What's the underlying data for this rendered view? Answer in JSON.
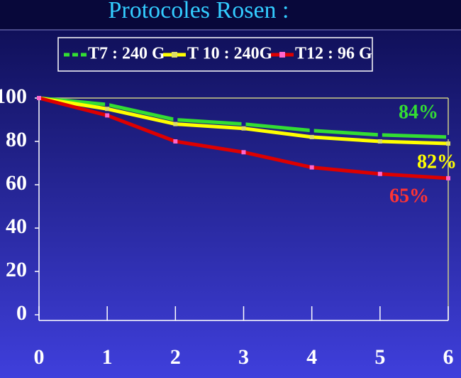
{
  "chart_data": {
    "type": "line",
    "title": "Protocoles Rosen :",
    "x": [
      0,
      1,
      2,
      3,
      4,
      5,
      6
    ],
    "xlim": [
      0,
      6
    ],
    "xticks": [
      0,
      1,
      2,
      3,
      4,
      5,
      6
    ],
    "ylim": [
      0,
      100
    ],
    "yticks": [
      0,
      20,
      40,
      60,
      80,
      100
    ],
    "series": [
      {
        "name": "T7 : 240 G",
        "color": "#33dd33",
        "values": [
          100,
          97,
          90,
          88,
          85,
          83,
          82
        ]
      },
      {
        "name": "T 10 : 240G",
        "color": "#ffff00",
        "values": [
          100,
          95,
          88,
          86,
          82,
          80,
          79
        ]
      },
      {
        "name": "T12 : 96 G",
        "color": "#dd0000",
        "values": [
          100,
          92,
          80,
          75,
          68,
          65,
          63
        ]
      }
    ],
    "annotations": [
      {
        "text": "84%",
        "color": "#33dd33"
      },
      {
        "text": "82%",
        "color": "#ffff00"
      },
      {
        "text": "65%",
        "color": "#ff3333"
      }
    ]
  }
}
